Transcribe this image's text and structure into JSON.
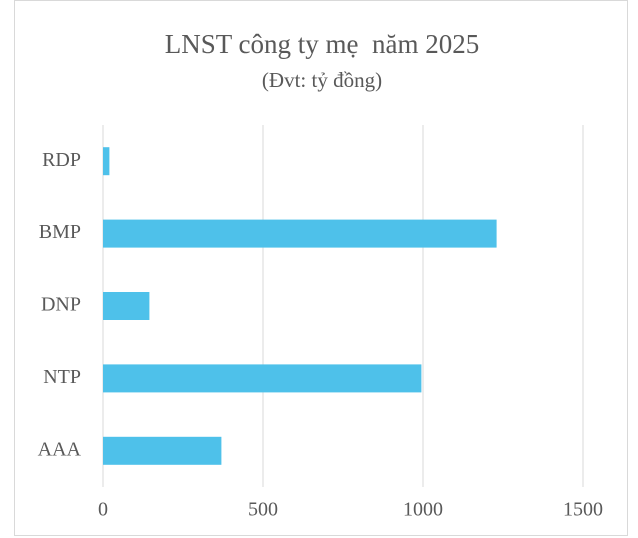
{
  "chart_data": {
    "type": "bar",
    "orientation": "horizontal",
    "title": "LNST công ty mẹ  năm 2025",
    "subtitle": "(Đvt: tỷ đồng)",
    "categories": [
      "RDP",
      "BMP",
      "DNP",
      "NTP",
      "AAA"
    ],
    "values": [
      20,
      1230,
      145,
      995,
      370
    ],
    "color": "#4ec1ea",
    "xlim": [
      0,
      1500
    ],
    "xticks": [
      0,
      500,
      1000,
      1500
    ],
    "grid": true
  }
}
